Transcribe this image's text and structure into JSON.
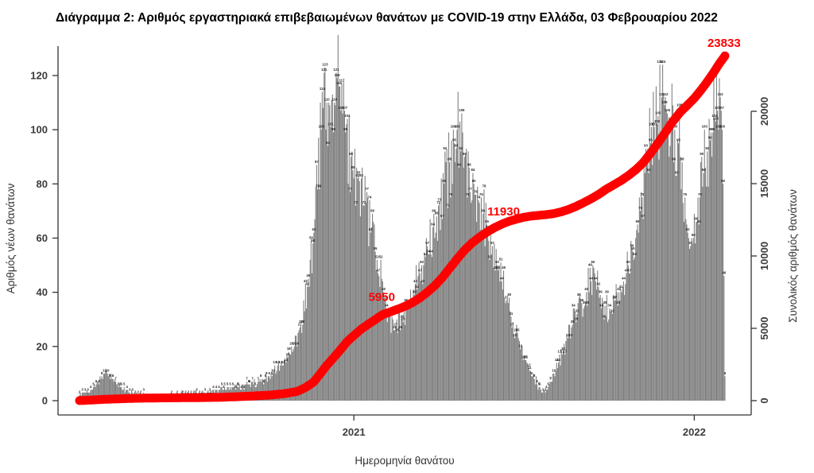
{
  "chart_data": {
    "type": "bar+line",
    "title": "Διάγραμμα 2: Αριθμός εργαστηριακά επιβεβαιωμένων θανάτων με COVID-19 στην Ελλάδα, 03 Φεβρουαρίου 2022",
    "xlabel": "Ημερομηνία θανάτου",
    "ylabel_left": "Αριθμός νέων θανάτων",
    "ylabel_right": "Συνολικός αριθμός θανάτων",
    "grid": "off",
    "legend": "none",
    "y_left_axis": {
      "min": 0,
      "max": 128,
      "ticks": [
        0,
        20,
        40,
        60,
        80,
        100,
        120
      ]
    },
    "y_right_axis": {
      "min": 0,
      "max": 20000,
      "ticks": [
        0,
        5000,
        10000,
        15000,
        20000
      ]
    },
    "x_axis": {
      "ticks": [
        {
          "label": "2021",
          "day_index": 295
        },
        {
          "label": "2022",
          "day_index": 661
        }
      ]
    },
    "days_total": 695,
    "series": [
      {
        "name": "daily-deaths-bars",
        "type": "bar",
        "axis": "left",
        "color": "#7f7f7f",
        "label_color": "#1f1f1f",
        "envelope_points": [
          [
            0,
            2
          ],
          [
            6,
            3
          ],
          [
            12,
            4
          ],
          [
            18,
            6
          ],
          [
            24,
            9
          ],
          [
            30,
            10
          ],
          [
            36,
            8
          ],
          [
            44,
            5
          ],
          [
            54,
            3
          ],
          [
            66,
            2
          ],
          [
            80,
            1
          ],
          [
            95,
            1
          ],
          [
            110,
            2
          ],
          [
            125,
            2
          ],
          [
            140,
            3
          ],
          [
            155,
            4
          ],
          [
            170,
            5
          ],
          [
            182,
            6
          ],
          [
            192,
            7
          ],
          [
            200,
            8
          ],
          [
            208,
            10
          ],
          [
            216,
            13
          ],
          [
            224,
            16
          ],
          [
            231,
            20
          ],
          [
            238,
            28
          ],
          [
            245,
            42
          ],
          [
            251,
            58
          ],
          [
            256,
            78
          ],
          [
            260,
            100
          ],
          [
            263,
            121
          ],
          [
            266,
            110
          ],
          [
            270,
            101
          ],
          [
            274,
            110
          ],
          [
            277,
            119
          ],
          [
            281,
            107
          ],
          [
            286,
            99
          ],
          [
            292,
            90
          ],
          [
            299,
            82
          ],
          [
            306,
            72
          ],
          [
            313,
            62
          ],
          [
            320,
            52
          ],
          [
            327,
            40
          ],
          [
            333,
            31
          ],
          [
            340,
            27
          ],
          [
            347,
            30
          ],
          [
            354,
            35
          ],
          [
            361,
            43
          ],
          [
            368,
            50
          ],
          [
            374,
            57
          ],
          [
            380,
            64
          ],
          [
            386,
            72
          ],
          [
            392,
            80
          ],
          [
            398,
            88
          ],
          [
            403,
            95
          ],
          [
            406,
            100
          ],
          [
            410,
            92
          ],
          [
            414,
            90
          ],
          [
            419,
            86
          ],
          [
            424,
            80
          ],
          [
            429,
            74
          ],
          [
            434,
            69
          ],
          [
            439,
            63
          ],
          [
            444,
            57
          ],
          [
            449,
            50
          ],
          [
            454,
            44
          ],
          [
            459,
            37
          ],
          [
            464,
            31
          ],
          [
            469,
            25
          ],
          [
            474,
            19
          ],
          [
            479,
            15
          ],
          [
            484,
            11
          ],
          [
            489,
            8
          ],
          [
            494,
            5
          ],
          [
            498,
            3
          ],
          [
            502,
            4
          ],
          [
            506,
            7
          ],
          [
            510,
            10
          ],
          [
            515,
            14
          ],
          [
            520,
            18
          ],
          [
            525,
            23
          ],
          [
            530,
            28
          ],
          [
            535,
            32
          ],
          [
            540,
            36
          ],
          [
            545,
            40
          ],
          [
            550,
            44
          ],
          [
            555,
            44
          ],
          [
            560,
            39
          ],
          [
            565,
            35
          ],
          [
            570,
            34
          ],
          [
            575,
            37
          ],
          [
            580,
            40
          ],
          [
            585,
            44
          ],
          [
            590,
            50
          ],
          [
            595,
            55
          ],
          [
            600,
            65
          ],
          [
            605,
            75
          ],
          [
            610,
            88
          ],
          [
            614,
            95
          ],
          [
            618,
            101
          ],
          [
            622,
            105
          ],
          [
            626,
            112
          ],
          [
            629,
            109
          ],
          [
            632,
            106
          ],
          [
            636,
            103
          ],
          [
            640,
            100
          ],
          [
            644,
            95
          ],
          [
            648,
            88
          ],
          [
            651,
            75
          ],
          [
            654,
            62
          ],
          [
            657,
            57
          ],
          [
            660,
            60
          ],
          [
            663,
            66
          ],
          [
            667,
            75
          ],
          [
            671,
            84
          ],
          [
            675,
            92
          ],
          [
            679,
            99
          ],
          [
            683,
            104
          ],
          [
            686,
            107
          ],
          [
            689,
            112
          ],
          [
            691,
            100
          ],
          [
            692,
            80
          ],
          [
            693,
            46
          ],
          [
            694,
            9
          ]
        ]
      },
      {
        "name": "cumulative-deaths-line",
        "type": "line",
        "axis": "right",
        "color": "#ff0000",
        "stroke_width": 11,
        "points": [
          [
            0,
            5
          ],
          [
            30,
            100
          ],
          [
            60,
            165
          ],
          [
            90,
            192
          ],
          [
            120,
            205
          ],
          [
            150,
            228
          ],
          [
            180,
            300
          ],
          [
            205,
            390
          ],
          [
            220,
            480
          ],
          [
            234,
            640
          ],
          [
            243,
            900
          ],
          [
            252,
            1300
          ],
          [
            260,
            1950
          ],
          [
            266,
            2450
          ],
          [
            273,
            2950
          ],
          [
            281,
            3550
          ],
          [
            288,
            4100
          ],
          [
            295,
            4500
          ],
          [
            303,
            4950
          ],
          [
            311,
            5300
          ],
          [
            319,
            5650
          ],
          [
            326,
            5950
          ],
          [
            334,
            6130
          ],
          [
            342,
            6320
          ],
          [
            350,
            6520
          ],
          [
            358,
            6780
          ],
          [
            366,
            7100
          ],
          [
            374,
            7500
          ],
          [
            382,
            7950
          ],
          [
            390,
            8500
          ],
          [
            398,
            9150
          ],
          [
            406,
            9800
          ],
          [
            414,
            10400
          ],
          [
            422,
            10900
          ],
          [
            430,
            11300
          ],
          [
            438,
            11650
          ],
          [
            446,
            11950
          ],
          [
            454,
            12200
          ],
          [
            462,
            12400
          ],
          [
            470,
            12550
          ],
          [
            478,
            12680
          ],
          [
            486,
            12760
          ],
          [
            494,
            12810
          ],
          [
            502,
            12860
          ],
          [
            510,
            12930
          ],
          [
            518,
            13050
          ],
          [
            526,
            13220
          ],
          [
            534,
            13430
          ],
          [
            542,
            13680
          ],
          [
            550,
            13950
          ],
          [
            558,
            14250
          ],
          [
            566,
            14600
          ],
          [
            574,
            14900
          ],
          [
            582,
            15200
          ],
          [
            590,
            15550
          ],
          [
            598,
            15950
          ],
          [
            606,
            16450
          ],
          [
            614,
            17100
          ],
          [
            622,
            17800
          ],
          [
            630,
            18550
          ],
          [
            638,
            19300
          ],
          [
            646,
            19950
          ],
          [
            654,
            20450
          ],
          [
            661,
            20900
          ],
          [
            668,
            21450
          ],
          [
            675,
            22050
          ],
          [
            682,
            22700
          ],
          [
            688,
            23300
          ],
          [
            694,
            23833
          ]
        ]
      }
    ],
    "annotations": [
      {
        "text": "5950",
        "day_index": 325,
        "dy": -18,
        "color": "#ff0000"
      },
      {
        "text": "11930",
        "day_index": 456,
        "dy": -10,
        "color": "#ff0000"
      },
      {
        "text": "23833",
        "day_index": 693,
        "dy": -13,
        "color": "#ff0000"
      }
    ]
  },
  "colors": {
    "bar": "#7f7f7f",
    "line": "#ff0000",
    "axis": "#333333",
    "tick_label": "#3c3c3c",
    "title": "#000000"
  }
}
